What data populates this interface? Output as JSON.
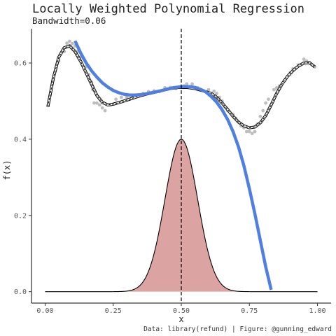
{
  "chart_data": {
    "type": "line",
    "title": "Locally Weighted Polynomial Regression",
    "subtitle": "Bandwidth=0.06",
    "xlabel": "x",
    "ylabel": "f(x)",
    "caption": "Data: library(refund) | Figure: @gunning_edward",
    "xlim": [
      -0.05,
      1.05
    ],
    "ylim": [
      -0.03,
      0.69
    ],
    "x_ticks": [
      0.0,
      0.25,
      0.5,
      0.75,
      1.0
    ],
    "x_tick_labels": [
      "0.00",
      "0.25",
      "0.50",
      "0.75",
      "1.00"
    ],
    "y_ticks": [
      0.0,
      0.2,
      0.4,
      0.6
    ],
    "y_tick_labels": [
      "0.0",
      "0.2",
      "0.4",
      "0.6"
    ],
    "grid": false,
    "vline_x": 0.5,
    "colors": {
      "points": "#bdbdbd",
      "local_fit": "#4f7fe0",
      "kernel_fill": "#dca3a3",
      "curve": "#000000"
    },
    "scatter_points": [
      [
        0.015,
        0.505
      ],
      [
        0.03,
        0.555
      ],
      [
        0.05,
        0.605
      ],
      [
        0.07,
        0.63
      ],
      [
        0.08,
        0.652
      ],
      [
        0.09,
        0.657
      ],
      [
        0.1,
        0.651
      ],
      [
        0.11,
        0.645
      ],
      [
        0.12,
        0.63
      ],
      [
        0.13,
        0.616
      ],
      [
        0.14,
        0.612
      ],
      [
        0.15,
        0.59
      ],
      [
        0.16,
        0.57
      ],
      [
        0.17,
        0.55
      ],
      [
        0.175,
        0.53
      ],
      [
        0.18,
        0.495
      ],
      [
        0.19,
        0.495
      ],
      [
        0.2,
        0.49
      ],
      [
        0.21,
        0.482
      ],
      [
        0.22,
        0.475
      ],
      [
        0.24,
        0.49
      ],
      [
        0.26,
        0.505
      ],
      [
        0.28,
        0.51
      ],
      [
        0.3,
        0.51
      ],
      [
        0.32,
        0.51
      ],
      [
        0.34,
        0.515
      ],
      [
        0.36,
        0.52
      ],
      [
        0.38,
        0.525
      ],
      [
        0.4,
        0.527
      ],
      [
        0.42,
        0.525
      ],
      [
        0.44,
        0.535
      ],
      [
        0.46,
        0.536
      ],
      [
        0.48,
        0.533
      ],
      [
        0.5,
        0.54
      ],
      [
        0.51,
        0.54
      ],
      [
        0.52,
        0.545
      ],
      [
        0.54,
        0.545
      ],
      [
        0.56,
        0.535
      ],
      [
        0.57,
        0.53
      ],
      [
        0.58,
        0.528
      ],
      [
        0.6,
        0.53
      ],
      [
        0.61,
        0.52
      ],
      [
        0.62,
        0.526
      ],
      [
        0.63,
        0.52
      ],
      [
        0.64,
        0.51
      ],
      [
        0.65,
        0.5
      ],
      [
        0.66,
        0.485
      ],
      [
        0.67,
        0.475
      ],
      [
        0.69,
        0.465
      ],
      [
        0.7,
        0.455
      ],
      [
        0.71,
        0.445
      ],
      [
        0.72,
        0.435
      ],
      [
        0.73,
        0.43
      ],
      [
        0.74,
        0.42
      ],
      [
        0.75,
        0.42
      ],
      [
        0.76,
        0.415
      ],
      [
        0.77,
        0.42
      ],
      [
        0.78,
        0.44
      ],
      [
        0.79,
        0.46
      ],
      [
        0.8,
        0.475
      ],
      [
        0.81,
        0.495
      ],
      [
        0.82,
        0.505
      ],
      [
        0.84,
        0.53
      ],
      [
        0.85,
        0.535
      ],
      [
        0.86,
        0.54
      ],
      [
        0.88,
        0.555
      ],
      [
        0.9,
        0.575
      ],
      [
        0.91,
        0.585
      ],
      [
        0.93,
        0.595
      ],
      [
        0.95,
        0.61
      ],
      [
        0.96,
        0.605
      ],
      [
        0.97,
        0.6
      ],
      [
        0.99,
        0.59
      ]
    ],
    "global_fit": [
      [
        0.01,
        0.485
      ],
      [
        0.03,
        0.56
      ],
      [
        0.05,
        0.615
      ],
      [
        0.07,
        0.64
      ],
      [
        0.09,
        0.645
      ],
      [
        0.11,
        0.63
      ],
      [
        0.13,
        0.605
      ],
      [
        0.15,
        0.575
      ],
      [
        0.17,
        0.545
      ],
      [
        0.19,
        0.515
      ],
      [
        0.21,
        0.497
      ],
      [
        0.23,
        0.49
      ],
      [
        0.25,
        0.492
      ],
      [
        0.28,
        0.498
      ],
      [
        0.31,
        0.505
      ],
      [
        0.34,
        0.512
      ],
      [
        0.37,
        0.518
      ],
      [
        0.4,
        0.523
      ],
      [
        0.43,
        0.528
      ],
      [
        0.46,
        0.533
      ],
      [
        0.49,
        0.536
      ],
      [
        0.52,
        0.536
      ],
      [
        0.55,
        0.533
      ],
      [
        0.58,
        0.527
      ],
      [
        0.61,
        0.52
      ],
      [
        0.63,
        0.51
      ],
      [
        0.65,
        0.495
      ],
      [
        0.67,
        0.478
      ],
      [
        0.69,
        0.46
      ],
      [
        0.71,
        0.445
      ],
      [
        0.73,
        0.435
      ],
      [
        0.75,
        0.43
      ],
      [
        0.77,
        0.432
      ],
      [
        0.79,
        0.443
      ],
      [
        0.81,
        0.462
      ],
      [
        0.83,
        0.49
      ],
      [
        0.85,
        0.52
      ],
      [
        0.87,
        0.545
      ],
      [
        0.89,
        0.565
      ],
      [
        0.91,
        0.58
      ],
      [
        0.93,
        0.592
      ],
      [
        0.95,
        0.6
      ],
      [
        0.97,
        0.601
      ],
      [
        0.99,
        0.59
      ]
    ],
    "local_fit": [
      [
        0.11,
        0.658
      ],
      [
        0.13,
        0.627
      ],
      [
        0.15,
        0.601
      ],
      [
        0.17,
        0.58
      ],
      [
        0.19,
        0.563
      ],
      [
        0.21,
        0.548
      ],
      [
        0.23,
        0.537
      ],
      [
        0.25,
        0.528
      ],
      [
        0.27,
        0.522
      ],
      [
        0.29,
        0.518
      ],
      [
        0.31,
        0.516
      ],
      [
        0.33,
        0.516
      ],
      [
        0.35,
        0.517
      ],
      [
        0.37,
        0.519
      ],
      [
        0.39,
        0.522
      ],
      [
        0.41,
        0.525
      ],
      [
        0.43,
        0.528
      ],
      [
        0.45,
        0.532
      ],
      [
        0.47,
        0.535
      ],
      [
        0.49,
        0.537
      ],
      [
        0.51,
        0.538
      ],
      [
        0.53,
        0.538
      ],
      [
        0.55,
        0.536
      ],
      [
        0.57,
        0.531
      ],
      [
        0.59,
        0.524
      ],
      [
        0.61,
        0.512
      ],
      [
        0.63,
        0.497
      ],
      [
        0.65,
        0.477
      ],
      [
        0.67,
        0.452
      ],
      [
        0.69,
        0.42
      ],
      [
        0.71,
        0.38
      ],
      [
        0.73,
        0.33
      ],
      [
        0.75,
        0.27
      ],
      [
        0.77,
        0.205
      ],
      [
        0.79,
        0.135
      ],
      [
        0.81,
        0.065
      ],
      [
        0.83,
        0.005
      ]
    ],
    "kernel": {
      "center": 0.5,
      "sd": 0.06,
      "peak": 0.4,
      "from": 0.0,
      "to": 1.0
    }
  }
}
